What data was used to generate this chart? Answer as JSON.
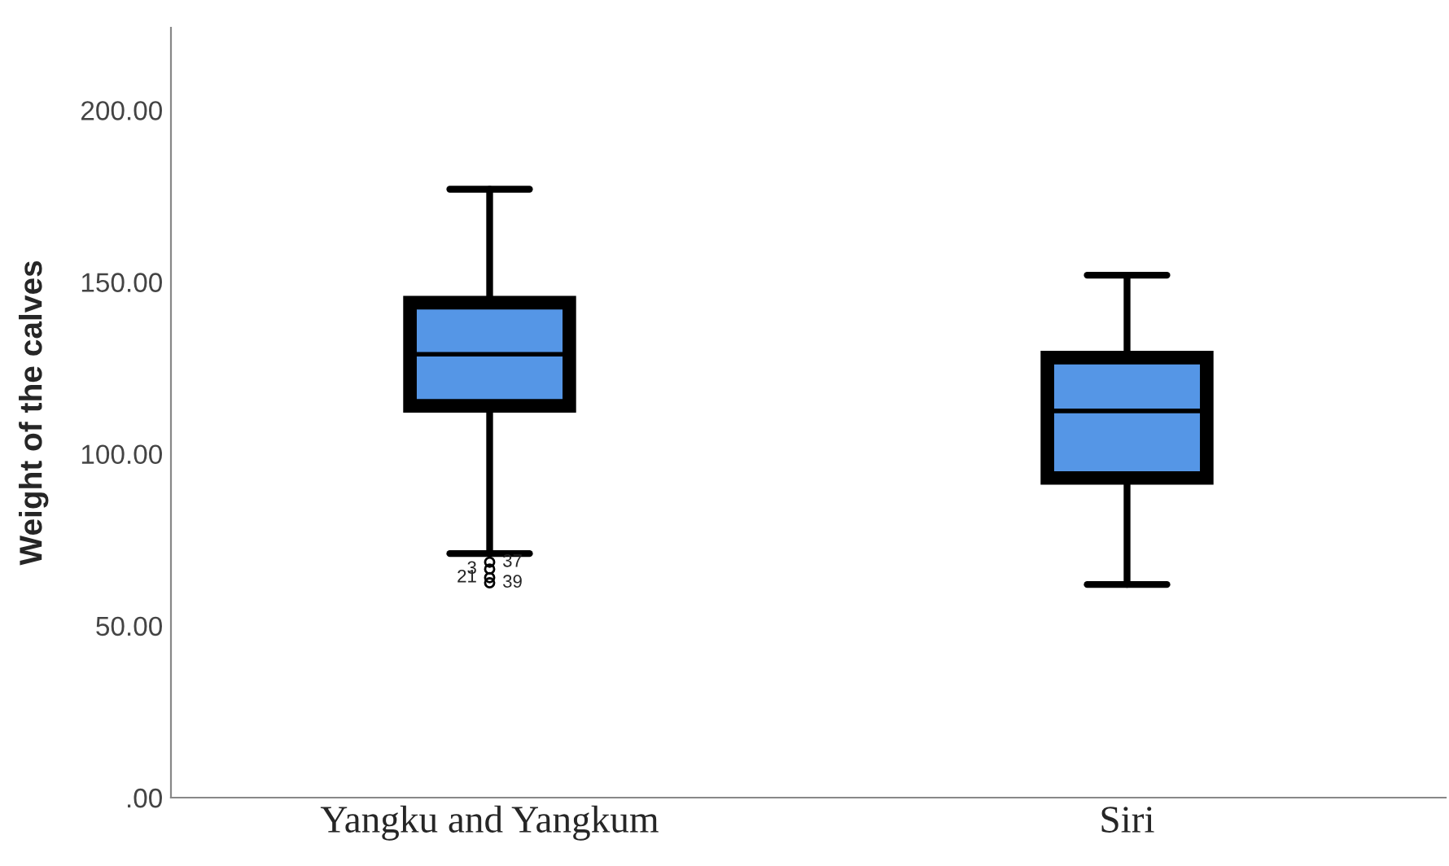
{
  "chart_data": {
    "type": "box",
    "ylabel": "Weight of the calves",
    "categories": [
      "Yangku and Yangkum",
      "Siri"
    ],
    "boxes": [
      {
        "low": 71,
        "q1": 114,
        "median": 129,
        "q3": 144,
        "high": 177,
        "outliers": [
          68.5,
          66.5,
          64,
          62.5
        ]
      },
      {
        "low": 62,
        "q1": 93,
        "median": 112.5,
        "q3": 128,
        "high": 152
      }
    ],
    "color": "#5596e6",
    "ylim": [
      0,
      224
    ],
    "yticks": [
      {
        "value": 0,
        "label": ".00"
      },
      {
        "value": 50,
        "label": "50.00"
      },
      {
        "value": 100,
        "label": "100.00"
      },
      {
        "value": 150,
        "label": "150.00"
      },
      {
        "value": 200,
        "label": "200.00"
      }
    ],
    "annotations": [
      "37",
      "3",
      "21",
      "39"
    ],
    "grid": false
  }
}
